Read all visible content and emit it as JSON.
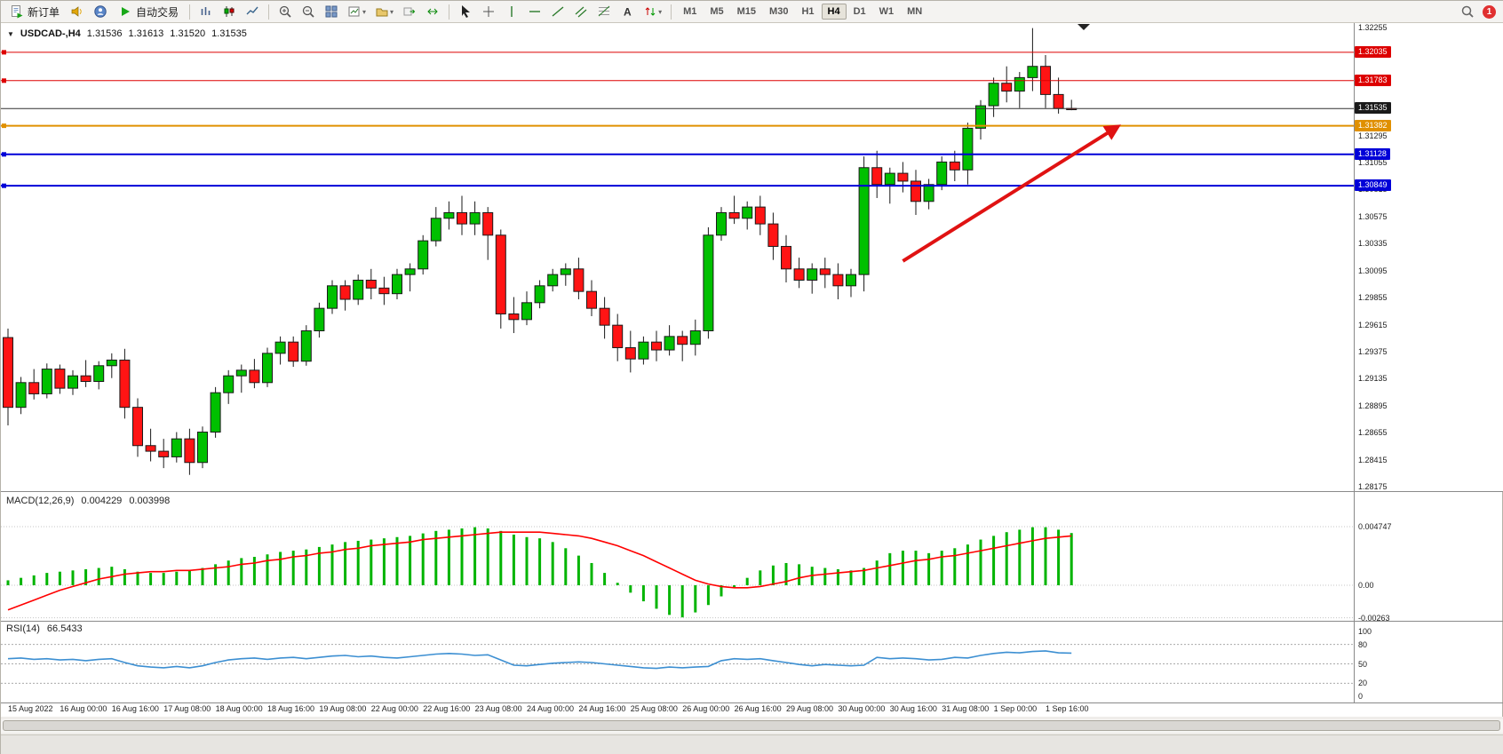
{
  "window": {
    "notification_badge": "1"
  },
  "toolbar": {
    "new_order": "新订单",
    "auto_trading": "自动交易",
    "timeframe_buttons": [
      "M1",
      "M5",
      "M15",
      "M30",
      "H1",
      "H4",
      "D1",
      "W1",
      "MN"
    ],
    "active_timeframe": "H4",
    "icon_names": [
      "new-order-icon",
      "speaker-icon",
      "user-icon",
      "play-icon",
      "bar-chart-icon",
      "candlestick-icon",
      "line-chart-icon",
      "zoom-in-icon",
      "zoom-out-icon",
      "tile-windows-icon",
      "new-chart-icon",
      "profiles-icon",
      "auto-scroll-icon",
      "chart-shift-icon",
      "cursor-icon",
      "crosshair-icon",
      "vertical-line-icon",
      "horizontal-line-icon",
      "trendline-icon",
      "channel-icon",
      "fibonacci-icon",
      "text-icon",
      "arrows-icon",
      "search-icon"
    ]
  },
  "chart_header": {
    "collapse_glyph": "▼",
    "symbol": "USDCAD-,H4",
    "open": "1.31536",
    "high": "1.31613",
    "low": "1.31520",
    "close": "1.31535"
  },
  "price_axis": {
    "ticks": [
      "1.32255",
      "1.31295",
      "1.31055",
      "1.30815",
      "1.30575",
      "1.30335",
      "1.30095",
      "1.29855",
      "1.29615",
      "1.29375",
      "1.29135",
      "1.28895",
      "1.28655",
      "1.28415",
      "1.28175"
    ],
    "badges": [
      {
        "label": "1.32035",
        "price": 1.32035,
        "color": "#dd0000"
      },
      {
        "label": "1.31783",
        "price": 1.31783,
        "color": "#dd0000"
      },
      {
        "label": "1.31535",
        "price": 1.31535,
        "color": "#1a1a1a"
      },
      {
        "label": "1.31382",
        "price": 1.31382,
        "color": "#e09000"
      },
      {
        "label": "1.31128",
        "price": 1.31128,
        "color": "#0000d8"
      },
      {
        "label": "1.30849",
        "price": 1.30849,
        "color": "#0000d8"
      }
    ]
  },
  "indicators": {
    "macd": {
      "label": "MACD(12,26,9)",
      "value_main": "0.004229",
      "value_signal": "0.003998",
      "scale": [
        {
          "label": "0.004747",
          "value": 0.004747
        },
        {
          "label": "0.00",
          "value": 0
        },
        {
          "label": "-0.00263",
          "value": -0.00263
        }
      ]
    },
    "rsi": {
      "label": "RSI(14)",
      "value": "66.5433",
      "levels": [
        80,
        50,
        20
      ],
      "scale": [
        {
          "label": "100",
          "value": 100
        },
        {
          "label": "80",
          "value": 80
        },
        {
          "label": "50",
          "value": 50
        },
        {
          "label": "20",
          "value": 20
        },
        {
          "label": "0",
          "value": 0
        }
      ]
    }
  },
  "chart_data": {
    "type": "candlestick",
    "symbol": "USDCAD",
    "timeframe": "H4",
    "price_range": [
      1.28175,
      1.32255
    ],
    "colors": {
      "bull": "#00c000",
      "bear": "#ff1414",
      "outline": "#1a1a1a",
      "macd_hist": "#00b400",
      "macd_signal": "#ff0000",
      "rsi_line": "#3c8fd2",
      "arrow": "#e01212"
    },
    "x_labels": [
      "15 Aug 2022",
      "16 Aug 00:00",
      "16 Aug 16:00",
      "17 Aug 08:00",
      "18 Aug 00:00",
      "18 Aug 16:00",
      "19 Aug 08:00",
      "22 Aug 00:00",
      "22 Aug 16:00",
      "23 Aug 08:00",
      "24 Aug 00:00",
      "24 Aug 16:00",
      "25 Aug 08:00",
      "26 Aug 00:00",
      "26 Aug 16:00",
      "29 Aug 08:00",
      "30 Aug 00:00",
      "30 Aug 16:00",
      "31 Aug 08:00",
      "1 Sep 00:00",
      "1 Sep 16:00"
    ],
    "hlines": [
      {
        "price": 1.32035,
        "color": "#dd0000",
        "width": 1,
        "role": "resistance"
      },
      {
        "price": 1.31783,
        "color": "#dd0000",
        "width": 1,
        "role": "resistance"
      },
      {
        "price": 1.31535,
        "color": "#303030",
        "width": 1,
        "role": "current-price"
      },
      {
        "price": 1.31382,
        "color": "#e09000",
        "width": 2,
        "role": "level"
      },
      {
        "price": 1.31128,
        "color": "#0000d8",
        "width": 2,
        "role": "support"
      },
      {
        "price": 1.30849,
        "color": "#0000d8",
        "width": 2,
        "role": "support"
      }
    ],
    "trend_arrow": {
      "from": {
        "candle": 69,
        "price": 1.3018
      },
      "to": {
        "candle": 85.5,
        "price": 1.3137
      },
      "color": "#e01212"
    },
    "candles": [
      [
        1.295,
        1.2958,
        1.2872,
        1.2888
      ],
      [
        1.2888,
        1.2915,
        1.2882,
        1.291
      ],
      [
        1.291,
        1.2922,
        1.2895,
        1.29
      ],
      [
        1.29,
        1.2927,
        1.2896,
        1.2922
      ],
      [
        1.2922,
        1.2926,
        1.29,
        1.2905
      ],
      [
        1.2905,
        1.2921,
        1.2899,
        1.2916
      ],
      [
        1.2916,
        1.293,
        1.2906,
        1.2911
      ],
      [
        1.2911,
        1.2929,
        1.2904,
        1.2925
      ],
      [
        1.2925,
        1.2936,
        1.2914,
        1.293
      ],
      [
        1.293,
        1.294,
        1.2878,
        1.2888
      ],
      [
        1.2888,
        1.2896,
        1.2844,
        1.2854
      ],
      [
        1.2854,
        1.2869,
        1.284,
        1.2849
      ],
      [
        1.2849,
        1.286,
        1.2834,
        1.2844
      ],
      [
        1.2844,
        1.2866,
        1.2839,
        1.286
      ],
      [
        1.286,
        1.2869,
        1.2828,
        1.2839
      ],
      [
        1.2839,
        1.2871,
        1.2834,
        1.2866
      ],
      [
        1.2866,
        1.2906,
        1.2861,
        1.2901
      ],
      [
        1.2901,
        1.2921,
        1.2891,
        1.2916
      ],
      [
        1.2916,
        1.2926,
        1.2901,
        1.2921
      ],
      [
        1.2921,
        1.2931,
        1.2905,
        1.291
      ],
      [
        1.291,
        1.2941,
        1.2906,
        1.2936
      ],
      [
        1.2936,
        1.2951,
        1.2926,
        1.2946
      ],
      [
        1.2946,
        1.2951,
        1.2924,
        1.2929
      ],
      [
        1.2929,
        1.2961,
        1.2925,
        1.2956
      ],
      [
        1.2956,
        1.2981,
        1.295,
        1.2976
      ],
      [
        1.2976,
        1.3001,
        1.2971,
        1.2996
      ],
      [
        1.2996,
        1.3001,
        1.2974,
        1.2984
      ],
      [
        1.2984,
        1.3006,
        1.2979,
        1.3001
      ],
      [
        1.3001,
        1.3011,
        1.2984,
        1.2994
      ],
      [
        1.2994,
        1.3004,
        1.2979,
        1.2989
      ],
      [
        1.2989,
        1.3011,
        1.2984,
        1.3006
      ],
      [
        1.3006,
        1.3016,
        1.2991,
        1.3011
      ],
      [
        1.3011,
        1.3041,
        1.3006,
        1.3036
      ],
      [
        1.3036,
        1.3066,
        1.3031,
        1.3056
      ],
      [
        1.3056,
        1.3071,
        1.3046,
        1.3061
      ],
      [
        1.3061,
        1.3076,
        1.3041,
        1.3051
      ],
      [
        1.3051,
        1.3071,
        1.3041,
        1.3061
      ],
      [
        1.3061,
        1.3066,
        1.3019,
        1.3041
      ],
      [
        1.3041,
        1.3046,
        1.2958,
        1.2971
      ],
      [
        1.2971,
        1.2986,
        1.2954,
        1.2966
      ],
      [
        1.2966,
        1.2991,
        1.2961,
        1.2981
      ],
      [
        1.2981,
        1.3001,
        1.2976,
        1.2996
      ],
      [
        1.2996,
        1.3011,
        1.2991,
        1.3006
      ],
      [
        1.3006,
        1.3016,
        1.2996,
        1.3011
      ],
      [
        1.3011,
        1.3021,
        1.2984,
        1.2991
      ],
      [
        1.2991,
        1.3001,
        1.2969,
        1.2976
      ],
      [
        1.2976,
        1.2986,
        1.2949,
        1.2961
      ],
      [
        1.2961,
        1.2971,
        1.2929,
        1.2941
      ],
      [
        1.2941,
        1.2956,
        1.2919,
        1.2931
      ],
      [
        1.2931,
        1.2951,
        1.2926,
        1.2946
      ],
      [
        1.2946,
        1.2956,
        1.2929,
        1.2939
      ],
      [
        1.2939,
        1.2961,
        1.2934,
        1.2951
      ],
      [
        1.2951,
        1.2956,
        1.2929,
        1.2944
      ],
      [
        1.2944,
        1.2966,
        1.2934,
        1.2956
      ],
      [
        1.2956,
        1.3048,
        1.2949,
        1.3041
      ],
      [
        1.3041,
        1.3066,
        1.3036,
        1.3061
      ],
      [
        1.3061,
        1.3076,
        1.3051,
        1.3056
      ],
      [
        1.3056,
        1.3071,
        1.3046,
        1.3066
      ],
      [
        1.3066,
        1.3076,
        1.3041,
        1.3051
      ],
      [
        1.3051,
        1.3061,
        1.3019,
        1.3031
      ],
      [
        1.3031,
        1.3041,
        1.2999,
        1.3011
      ],
      [
        1.3011,
        1.3021,
        1.2994,
        1.3001
      ],
      [
        1.3001,
        1.3016,
        1.2989,
        1.3011
      ],
      [
        1.3011,
        1.3021,
        1.2994,
        1.3006
      ],
      [
        1.3006,
        1.3016,
        1.2984,
        1.2996
      ],
      [
        1.2996,
        1.3011,
        1.2986,
        1.3006
      ],
      [
        1.3006,
        1.3111,
        1.2991,
        1.3101
      ],
      [
        1.3101,
        1.3116,
        1.3074,
        1.3086
      ],
      [
        1.3086,
        1.3101,
        1.3069,
        1.3096
      ],
      [
        1.3096,
        1.3106,
        1.3079,
        1.3089
      ],
      [
        1.3089,
        1.3099,
        1.3059,
        1.3071
      ],
      [
        1.3071,
        1.3091,
        1.3064,
        1.3086
      ],
      [
        1.3086,
        1.3111,
        1.3081,
        1.3106
      ],
      [
        1.3106,
        1.3116,
        1.3089,
        1.3099
      ],
      [
        1.3099,
        1.3141,
        1.3086,
        1.3136
      ],
      [
        1.3136,
        1.3161,
        1.3126,
        1.3156
      ],
      [
        1.3156,
        1.3181,
        1.3146,
        1.3176
      ],
      [
        1.3176,
        1.3191,
        1.3159,
        1.3169
      ],
      [
        1.3169,
        1.3186,
        1.3154,
        1.3181
      ],
      [
        1.3181,
        1.3225,
        1.3169,
        1.3191
      ],
      [
        1.3191,
        1.3201,
        1.3154,
        1.3166
      ],
      [
        1.3166,
        1.3181,
        1.3149,
        1.31536
      ],
      [
        1.31536,
        1.31613,
        1.3152,
        1.31535
      ]
    ],
    "macd": {
      "histogram": [
        0.0004,
        0.0006,
        0.0008,
        0.001,
        0.0011,
        0.0012,
        0.0013,
        0.0014,
        0.0015,
        0.0013,
        0.0011,
        0.001,
        0.001,
        0.0011,
        0.0012,
        0.0014,
        0.0017,
        0.002,
        0.0022,
        0.0023,
        0.0025,
        0.0027,
        0.0028,
        0.0029,
        0.0031,
        0.0033,
        0.0035,
        0.0036,
        0.0037,
        0.0038,
        0.0039,
        0.004,
        0.0042,
        0.0044,
        0.0045,
        0.0046,
        0.0047,
        0.0046,
        0.0044,
        0.0041,
        0.0039,
        0.0038,
        0.0035,
        0.003,
        0.0024,
        0.0018,
        0.001,
        0.0002,
        -0.0006,
        -0.0013,
        -0.0019,
        -0.0024,
        -0.0026,
        -0.0022,
        -0.0016,
        -0.0009,
        -0.0002,
        0.0006,
        0.0012,
        0.0016,
        0.0018,
        0.0017,
        0.0015,
        0.0014,
        0.0013,
        0.0012,
        0.0014,
        0.002,
        0.0026,
        0.0028,
        0.0028,
        0.0026,
        0.0028,
        0.003,
        0.0033,
        0.0037,
        0.004,
        0.0043,
        0.0045,
        0.0047,
        0.0047,
        0.0045,
        0.004229
      ],
      "signal": [
        -0.002,
        -0.0016,
        -0.0012,
        -0.0008,
        -0.0004,
        -0.0001,
        0.0002,
        0.0005,
        0.0007,
        0.0009,
        0.001,
        0.0011,
        0.0011,
        0.0012,
        0.0012,
        0.0013,
        0.0014,
        0.0015,
        0.0017,
        0.0018,
        0.002,
        0.0021,
        0.0023,
        0.0024,
        0.0026,
        0.0027,
        0.0029,
        0.003,
        0.0032,
        0.0033,
        0.0034,
        0.0035,
        0.0037,
        0.0038,
        0.0039,
        0.004,
        0.0041,
        0.0042,
        0.0043,
        0.0043,
        0.0043,
        0.0043,
        0.0042,
        0.0041,
        0.004,
        0.0038,
        0.0035,
        0.0032,
        0.0028,
        0.0024,
        0.0019,
        0.0014,
        0.0009,
        0.0004,
        0.0001,
        -0.0001,
        -0.0002,
        -0.0002,
        -0.0001,
        0.0001,
        0.0003,
        0.0006,
        0.0008,
        0.0009,
        0.001,
        0.0011,
        0.0012,
        0.0014,
        0.0016,
        0.0018,
        0.002,
        0.0021,
        0.0023,
        0.0024,
        0.0026,
        0.0028,
        0.003,
        0.0032,
        0.0034,
        0.0036,
        0.0038,
        0.0039,
        0.003998
      ]
    },
    "rsi": [
      58,
      59,
      57,
      58,
      56,
      57,
      55,
      57,
      58,
      52,
      47,
      45,
      44,
      46,
      44,
      47,
      52,
      56,
      58,
      59,
      57,
      59,
      60,
      58,
      60,
      62,
      63,
      61,
      62,
      60,
      59,
      61,
      63,
      65,
      66,
      65,
      63,
      64,
      56,
      48,
      47,
      49,
      51,
      52,
      53,
      52,
      50,
      48,
      46,
      44,
      43,
      45,
      44,
      45,
      46,
      55,
      58,
      57,
      58,
      55,
      52,
      49,
      47,
      49,
      48,
      47,
      48,
      60,
      58,
      59,
      58,
      56,
      57,
      60,
      59,
      63,
      66,
      68,
      67,
      69,
      70,
      67,
      66.5433
    ]
  }
}
